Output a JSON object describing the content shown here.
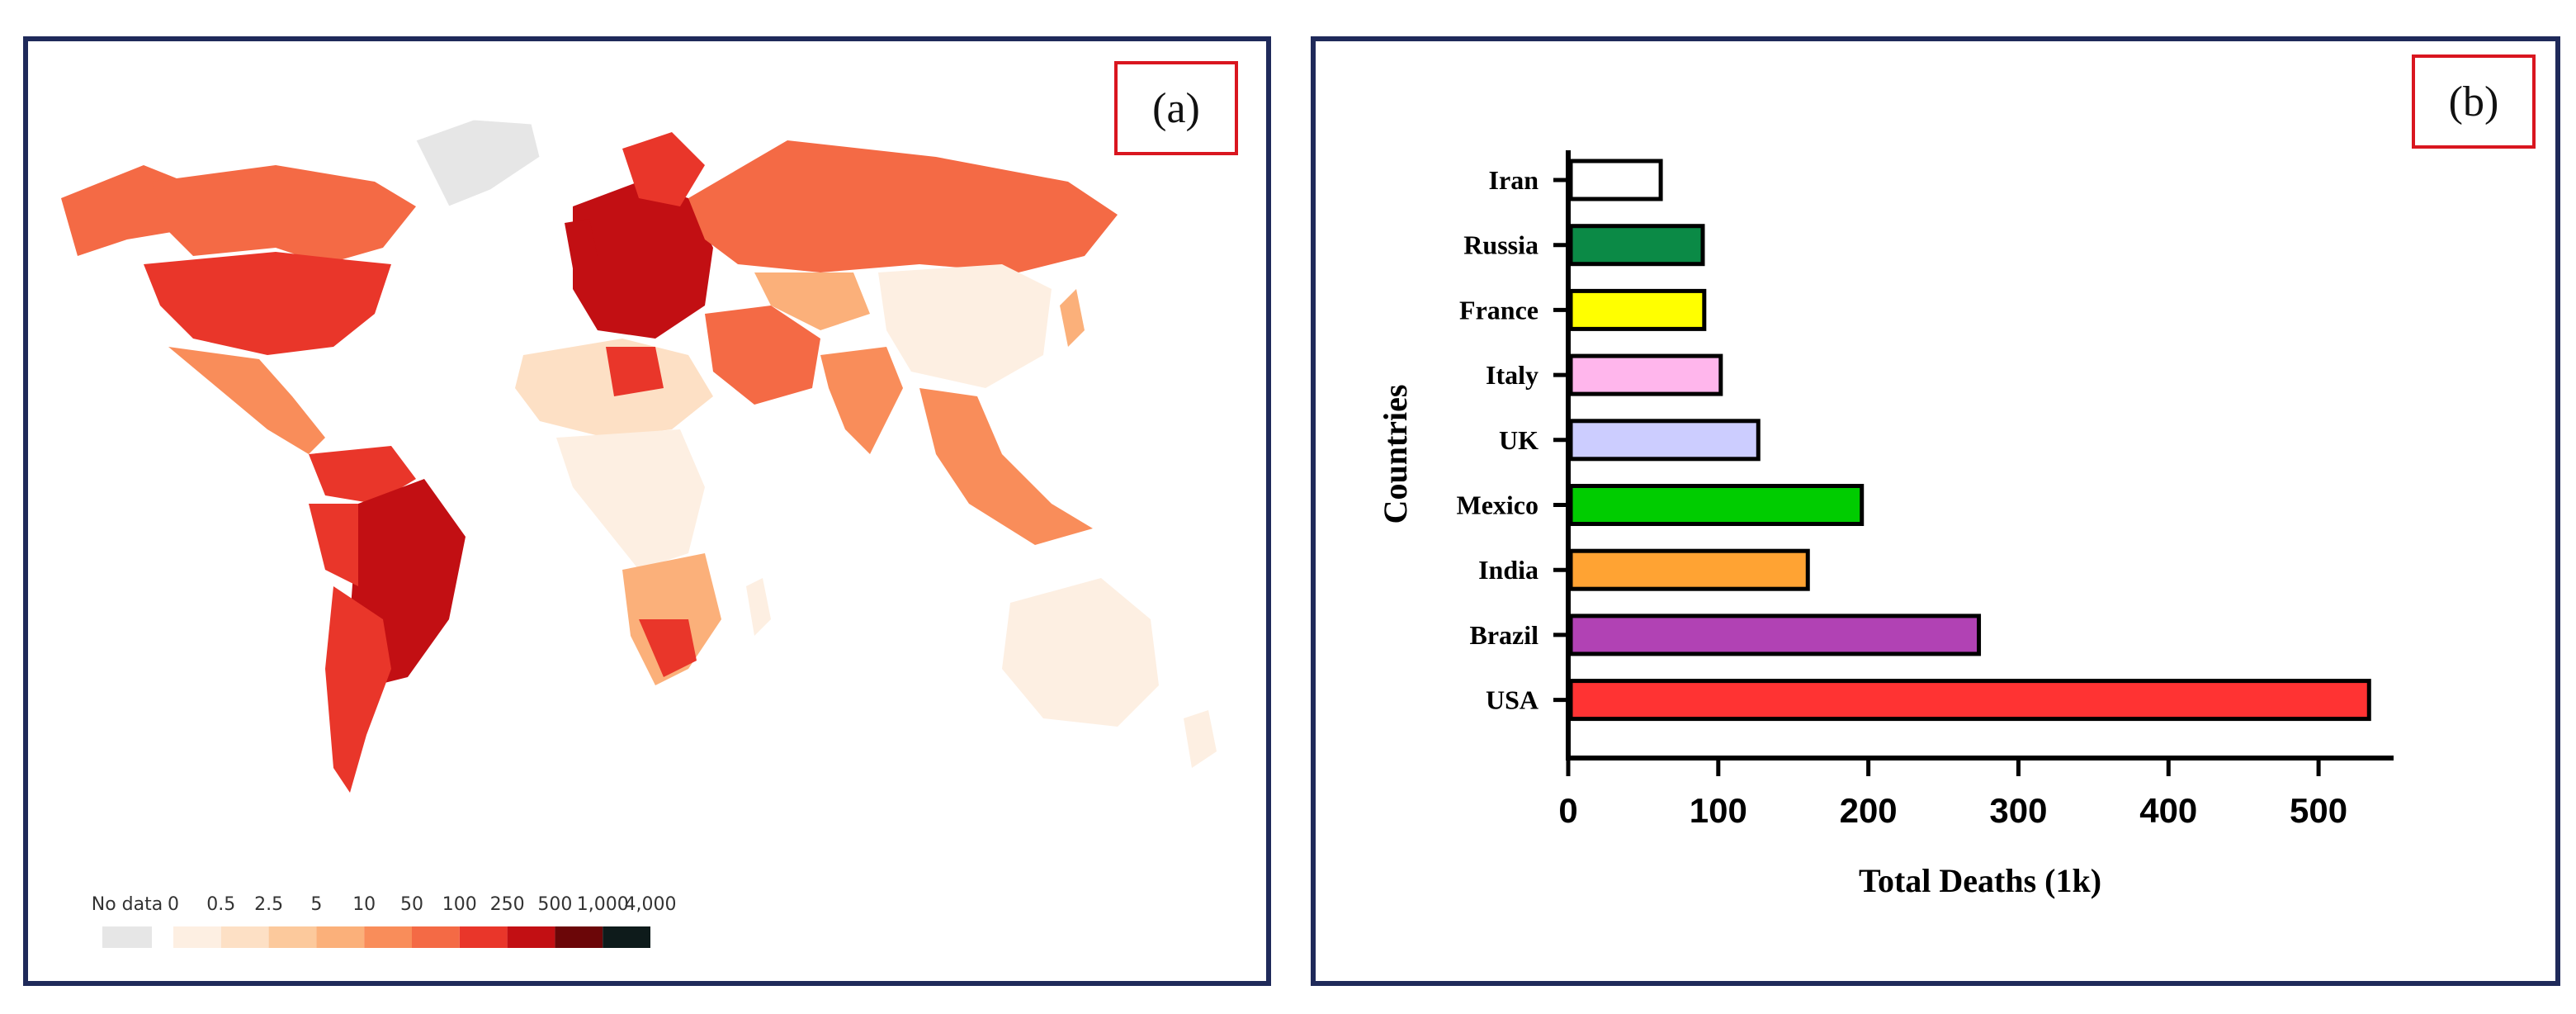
{
  "panels": {
    "a": {
      "label": "(a)"
    },
    "b": {
      "label": "(b)"
    }
  },
  "map_legend": {
    "no_data_label": "No data",
    "no_data_color": "#e6e6e6",
    "thresholds": [
      "0",
      "0.5",
      "2.5",
      "5",
      "10",
      "50",
      "100",
      "250",
      "500",
      "1,000",
      "4,000"
    ],
    "colors": [
      "#fdefe2",
      "#fde0c5",
      "#fcc99c",
      "#fbb07a",
      "#f98d5a",
      "#f46a45",
      "#e9362a",
      "#c20f13",
      "#6b0608",
      "#0e1b1b"
    ]
  },
  "chart_data": {
    "type": "bar",
    "orientation": "horizontal",
    "categories": [
      "Iran",
      "Russia",
      "France",
      "Italy",
      "UK",
      "Mexico",
      "India",
      "Brazil",
      "USA"
    ],
    "values": [
      60,
      88,
      89,
      100,
      125,
      194,
      158,
      272,
      532
    ],
    "colors": [
      "#ffffff",
      "#0b8a46",
      "#ffff00",
      "#ffb6ec",
      "#cccdff",
      "#00cc00",
      "#ffa333",
      "#b142b4",
      "#ff3333"
    ],
    "xlabel": "Total Deaths (1k)",
    "ylabel": "Countries",
    "xlim": [
      0,
      550
    ],
    "xticks": [
      0,
      100,
      200,
      300,
      400,
      500
    ],
    "grid": false
  }
}
